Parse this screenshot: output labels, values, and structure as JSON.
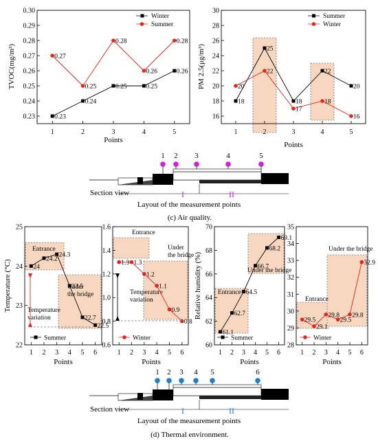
{
  "panels": {
    "c_caption": "(c) Air quality.",
    "d_caption": "(d) Thermal environment.",
    "c_layout_label": "Layout of the measurement points",
    "d_layout_label": "Layout of the measurement points",
    "section_view": "Section view",
    "zone_one": "I",
    "zone_two": "II",
    "c_point_labels": [
      "1",
      "2",
      "3",
      "4",
      "5"
    ],
    "d_point_labels": [
      "1",
      "2",
      "3",
      "4",
      "5",
      "6"
    ],
    "colors": {
      "magenta_marker": "#d81bd8",
      "blue_marker": "#1a7fd4",
      "winter": "#e8231b",
      "summer": "#000000",
      "highlight": "#f7d7bf",
      "zone_one": "#d81bd8",
      "zone_two_air": "#d81bd8",
      "zone_thermal": "#1a7fd4"
    }
  },
  "chart_data": [
    {
      "id": "tvoc",
      "type": "line",
      "xlabel": "Points",
      "ylabel": "TVOC(mg/m³)",
      "x": [
        1,
        2,
        3,
        4,
        5
      ],
      "ylim": [
        0.225,
        0.3
      ],
      "yticks": [
        "0.23",
        "0.24",
        "0.25",
        "0.26",
        "0.27",
        "0.28",
        "0.29",
        "0.30"
      ],
      "xticks": [
        "1",
        "2",
        "3",
        "4",
        "5"
      ],
      "legend": "top-right",
      "series": [
        {
          "name": "Winter",
          "color": "#000000",
          "marker": "square",
          "values": [
            0.23,
            0.24,
            0.25,
            0.25,
            0.26
          ],
          "labels": [
            "0.23",
            "0.24",
            "0.25",
            "0.25",
            "0.26"
          ]
        },
        {
          "name": "Summer",
          "color": "#e8231b",
          "marker": "circle",
          "values": [
            0.27,
            0.25,
            0.28,
            0.26,
            0.28
          ],
          "labels": [
            "0.27",
            "0.25",
            "0.28",
            "0.26",
            "0.28"
          ]
        }
      ]
    },
    {
      "id": "pm25",
      "type": "line",
      "xlabel": "Points",
      "ylabel": "PM 2.5(μg/m³)",
      "x": [
        1,
        2,
        3,
        4,
        5
      ],
      "ylim": [
        15,
        30
      ],
      "yticks": [
        "16",
        "18",
        "20",
        "22",
        "24",
        "26",
        "28",
        "30"
      ],
      "xticks": [
        "1",
        "2",
        "3",
        "4",
        "5"
      ],
      "legend": "top-right",
      "highlights": [
        2,
        4
      ],
      "series": [
        {
          "name": "Summer",
          "color": "#000000",
          "marker": "square",
          "values": [
            18,
            25,
            18,
            22,
            20
          ],
          "labels": [
            "18",
            "25",
            "18",
            "22",
            "20"
          ]
        },
        {
          "name": "Winter",
          "color": "#e8231b",
          "marker": "circle",
          "values": [
            20,
            22,
            17,
            18,
            16
          ],
          "labels": [
            "20",
            "22",
            "17",
            "18",
            "16"
          ]
        }
      ]
    },
    {
      "id": "temp_summer",
      "type": "line",
      "xlabel": "Points",
      "ylabel": "Temperature (°C)",
      "x": [
        1,
        2,
        3,
        4,
        5,
        6
      ],
      "ylim": [
        22,
        25
      ],
      "yticks": [
        "22",
        "23",
        "24",
        "25"
      ],
      "xticks": [
        "1",
        "2",
        "3",
        "4",
        "5",
        "6"
      ],
      "legend": "bottom-left",
      "annotations": [
        "Entrance",
        "Under the bridge",
        "Temperature variation"
      ],
      "series": [
        {
          "name": "Summer",
          "color": "#000000",
          "marker": "square",
          "values": [
            24,
            24.2,
            24.3,
            23.5,
            22.7,
            22.5
          ],
          "labels": [
            "24",
            "24.2",
            "24.3",
            "23.5",
            "22.7",
            "22.5"
          ]
        }
      ]
    },
    {
      "id": "temp_winter",
      "type": "line",
      "xlabel": "Points",
      "ylabel": "",
      "x": [
        1,
        2,
        3,
        4,
        5,
        6
      ],
      "ylim": [
        0.6,
        1.6
      ],
      "yticks": [
        "0.6",
        "0.8",
        "1.0",
        "1.2",
        "1.4",
        "1.6"
      ],
      "xticks": [
        "1",
        "2",
        "3",
        "4",
        "5",
        "6"
      ],
      "legend": "bottom-left",
      "annotations": [
        "Entrance",
        "Under the bridge",
        "Temperature variation"
      ],
      "series": [
        {
          "name": "Winter",
          "color": "#e8231b",
          "marker": "circle",
          "values": [
            1.3,
            1.3,
            1.2,
            1.1,
            0.9,
            0.8
          ],
          "labels": [
            "1.3",
            "1.3",
            "1.2",
            "1.1",
            "0.9",
            "0.8"
          ]
        }
      ]
    },
    {
      "id": "rh_summer",
      "type": "line",
      "xlabel": "Points",
      "ylabel": "Relative humidity (%)",
      "x": [
        1,
        2,
        3,
        4,
        5,
        6
      ],
      "ylim": [
        60,
        70
      ],
      "yticks": [
        "60",
        "62",
        "64",
        "66",
        "68",
        "70"
      ],
      "xticks": [
        "1",
        "2",
        "3",
        "4",
        "5",
        "6"
      ],
      "legend": "bottom-left",
      "annotations": [
        "Entrance",
        "Under the bridge"
      ],
      "series": [
        {
          "name": "Summer",
          "color": "#000000",
          "marker": "square",
          "values": [
            61.1,
            62.7,
            64.5,
            66.7,
            68.2,
            69.1
          ],
          "labels": [
            "61.1",
            "62.7",
            "64.5",
            "66.7",
            "68.2",
            "69.1"
          ]
        }
      ]
    },
    {
      "id": "rh_winter",
      "type": "line",
      "xlabel": "Points",
      "ylabel": "",
      "x": [
        1,
        2,
        3,
        4,
        5,
        6
      ],
      "ylim": [
        28,
        35
      ],
      "yticks": [
        "28",
        "29",
        "30",
        "31",
        "32",
        "33",
        "34",
        "35"
      ],
      "xticks": [
        "1",
        "2",
        "3",
        "4",
        "5",
        "6"
      ],
      "legend": "bottom-left",
      "annotations": [
        "Entrance",
        "Under the bridge"
      ],
      "series": [
        {
          "name": "Winter",
          "color": "#e8231b",
          "marker": "circle",
          "values": [
            29.5,
            29.1,
            29.8,
            29.5,
            29.8,
            32.9
          ],
          "labels": [
            "29.5",
            "29.1",
            "29.8",
            "29.5",
            "29.8",
            "32.9"
          ]
        }
      ]
    }
  ]
}
